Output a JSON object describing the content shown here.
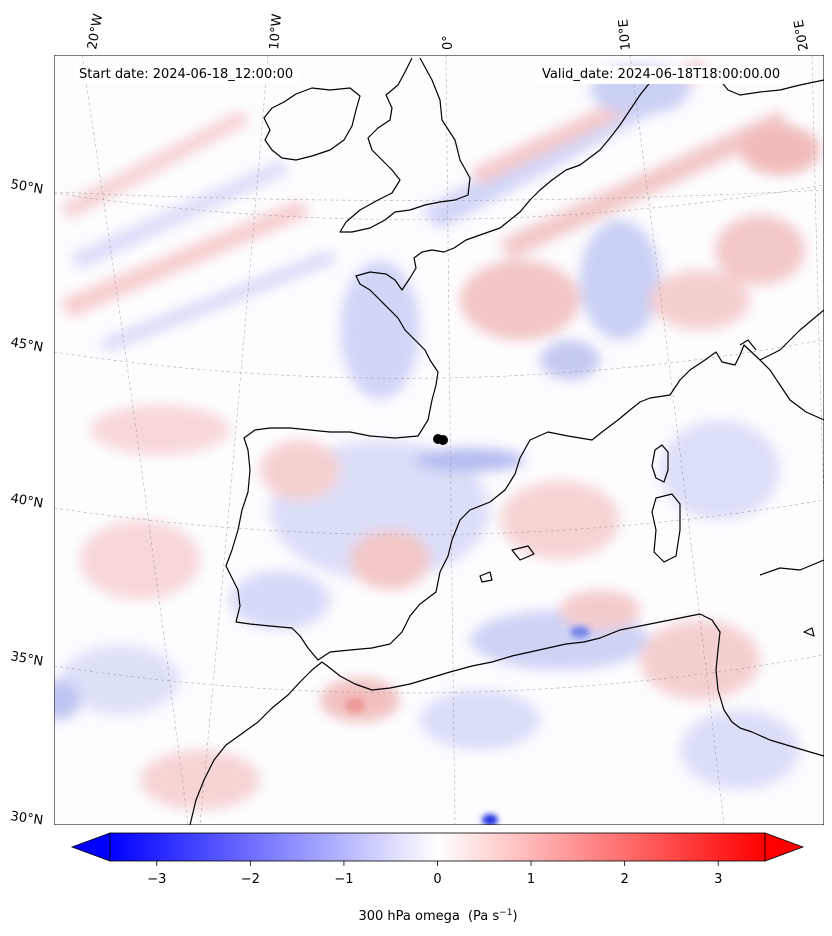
{
  "map": {
    "start_date": "Start date: 2024-06-18_12:00:00",
    "valid_date": "Valid_date: 2024-06-18T18:00:00.00",
    "lon_labels": [
      "20°W",
      "10°W",
      "0°",
      "10°E",
      "20°E"
    ],
    "lat_labels": [
      "50°N",
      "45°N",
      "40°N",
      "35°N",
      "30°N"
    ],
    "variable": "300 hPa omega",
    "units_prefix": "(Pa s",
    "units_exp": "−1",
    "units_suffix": ")",
    "colormap": "bwr",
    "colors": {
      "low": "#0000ff",
      "mid": "#ffffff",
      "high": "#ff0000",
      "coast": "#000000"
    }
  },
  "colorbar": {
    "ticks": [
      {
        "value": -3,
        "label": "−3"
      },
      {
        "value": -2,
        "label": "−2"
      },
      {
        "value": -1,
        "label": "−1"
      },
      {
        "value": 0,
        "label": "0"
      },
      {
        "value": 1,
        "label": "1"
      },
      {
        "value": 2,
        "label": "2"
      },
      {
        "value": 3,
        "label": "3"
      }
    ],
    "range": [
      -3.5,
      3.5
    ],
    "extend": "both"
  }
}
